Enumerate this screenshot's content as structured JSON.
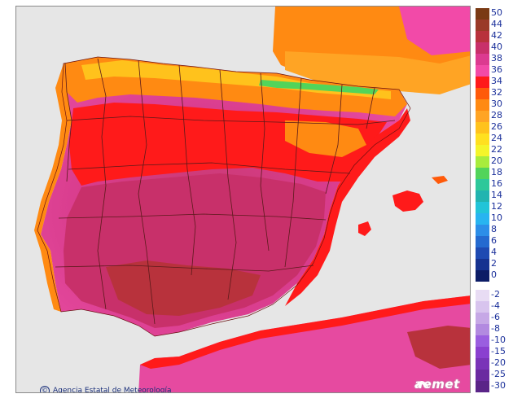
{
  "map": {
    "credit_text": "Agencia Estatal de Meteorología",
    "copyright_symbol": "©",
    "logo_text": "aemet"
  },
  "legend": {
    "upper": [
      {
        "label": "50",
        "color": "#7a3a14"
      },
      {
        "label": "44",
        "color": "#9a3a28"
      },
      {
        "label": "42",
        "color": "#b8323c"
      },
      {
        "label": "40",
        "color": "#c8306a"
      },
      {
        "label": "38",
        "color": "#dc3a90"
      },
      {
        "label": "36",
        "color": "#f24aa8"
      },
      {
        "label": "34",
        "color": "#ff1a1a"
      },
      {
        "label": "32",
        "color": "#ff5a0a"
      },
      {
        "label": "30",
        "color": "#ff8a12"
      },
      {
        "label": "28",
        "color": "#ffa424"
      },
      {
        "label": "26",
        "color": "#ffc21c"
      },
      {
        "label": "24",
        "color": "#ffe020"
      },
      {
        "label": "22",
        "color": "#f4f52a"
      },
      {
        "label": "20",
        "color": "#a8ec3c"
      },
      {
        "label": "18",
        "color": "#52d45a"
      },
      {
        "label": "16",
        "color": "#2ec89a"
      },
      {
        "label": "14",
        "color": "#22b4b0"
      },
      {
        "label": "12",
        "color": "#22c4d8"
      },
      {
        "label": "10",
        "color": "#28b4f0"
      },
      {
        "label": "8",
        "color": "#2c8ee8"
      },
      {
        "label": "6",
        "color": "#246ad0"
      },
      {
        "label": "4",
        "color": "#1e4ab2"
      },
      {
        "label": "2",
        "color": "#163290"
      },
      {
        "label": "0",
        "color": "#0c1c66"
      }
    ],
    "lower": [
      {
        "label": "-2",
        "color": "#e8dcf4"
      },
      {
        "label": "-4",
        "color": "#d8c4ee"
      },
      {
        "label": "-6",
        "color": "#c6a8e6"
      },
      {
        "label": "-8",
        "color": "#b28ae0"
      },
      {
        "label": "-10",
        "color": "#9a5ee0"
      },
      {
        "label": "-15",
        "color": "#8a40d0"
      },
      {
        "label": "-20",
        "color": "#7a34b8"
      },
      {
        "label": "-25",
        "color": "#6a2aa0"
      },
      {
        "label": "-30",
        "color": "#5a2488"
      }
    ]
  }
}
